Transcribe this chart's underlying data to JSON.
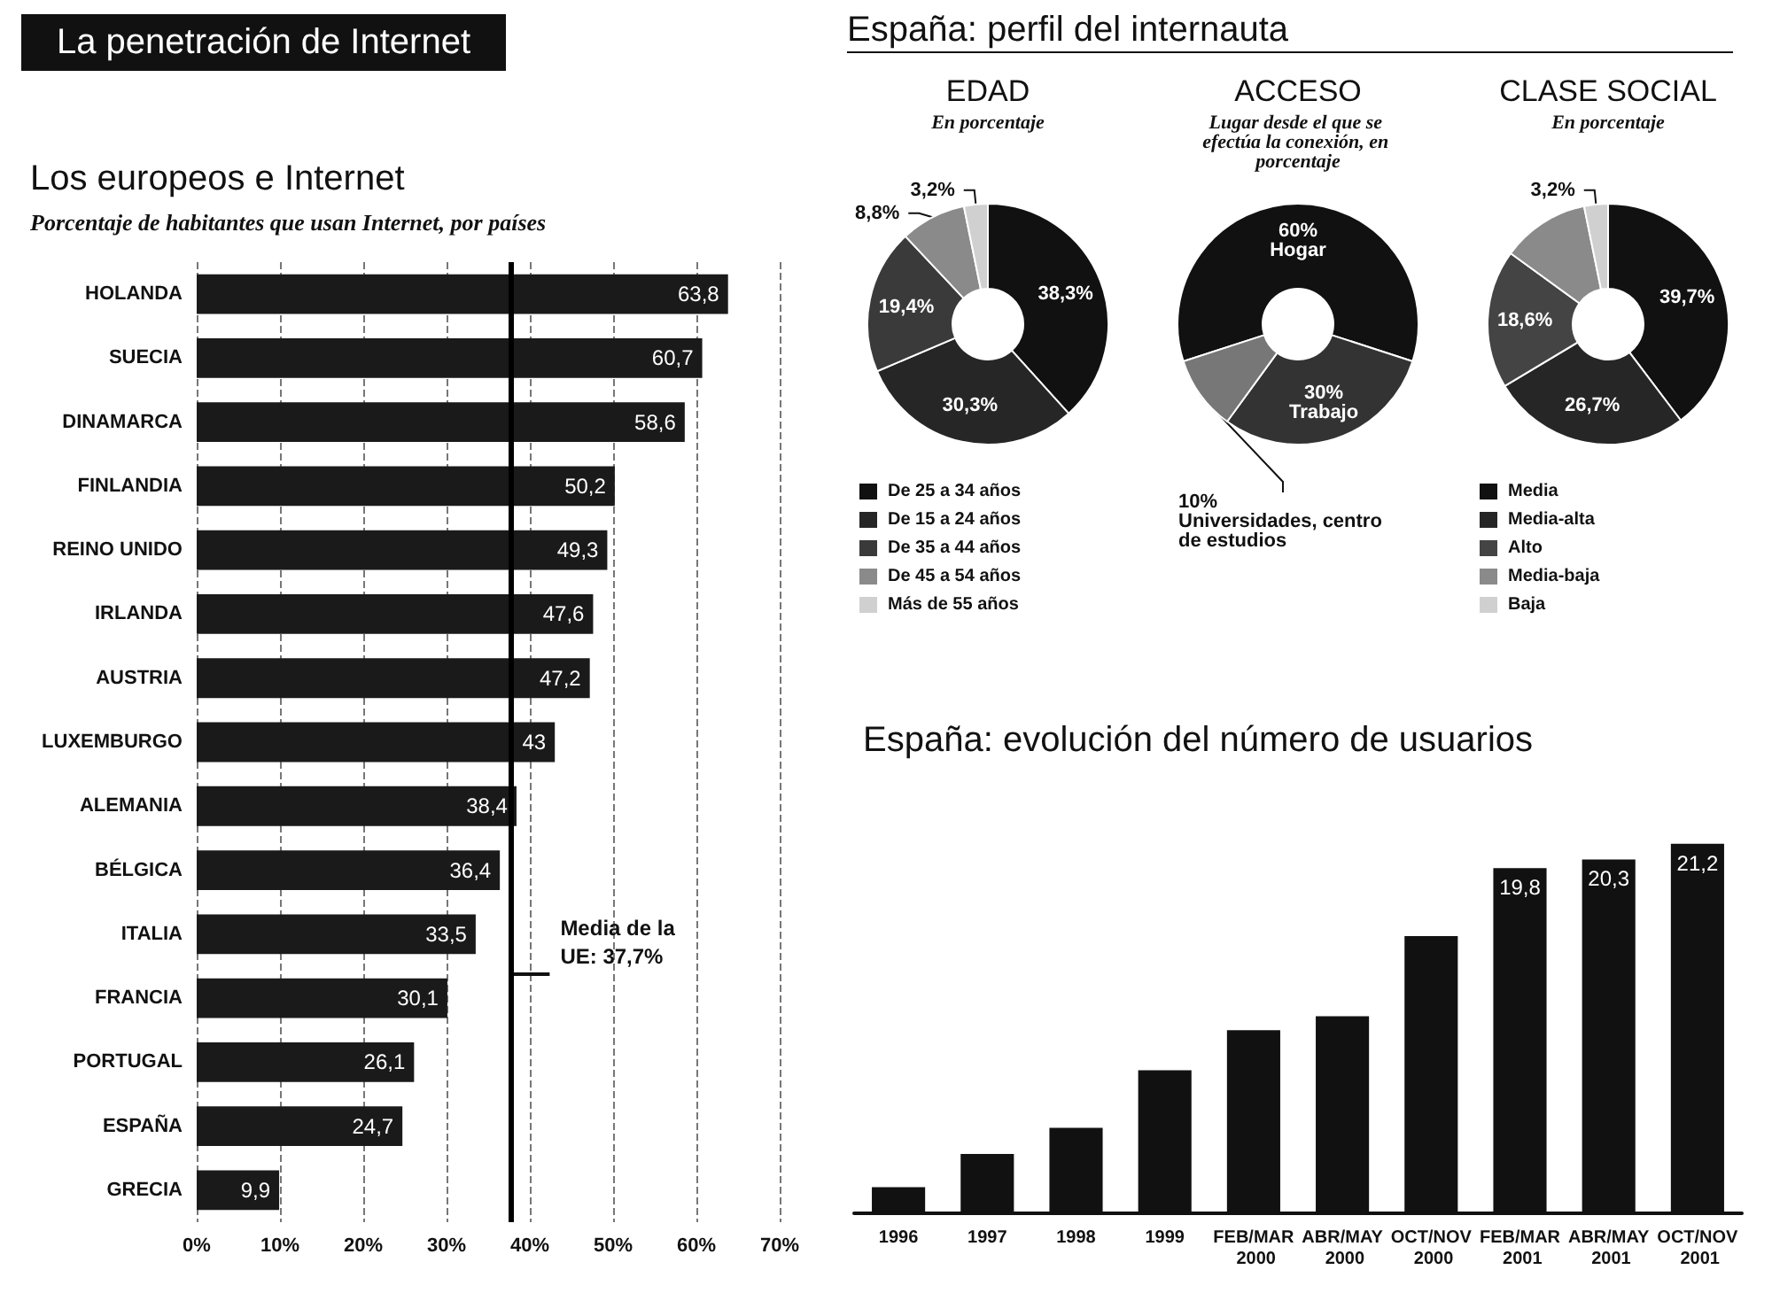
{
  "chart_data": [
    {
      "type": "bar",
      "orientation": "horizontal",
      "annotations": [
        "La penetración de Internet"
      ],
      "title": "Los europeos e Internet",
      "subtitle": "Porcentaje de habitantes que usan Internet, por países",
      "categories": [
        "HOLANDA",
        "SUECIA",
        "DINAMARCA",
        "FINLANDIA",
        "REINO UNIDO",
        "IRLANDA",
        "AUSTRIA",
        "LUXEMBURGO",
        "ALEMANIA",
        "BÉLGICA",
        "ITALIA",
        "FRANCIA",
        "PORTUGAL",
        "ESPAÑA",
        "GRECIA"
      ],
      "values": [
        63.8,
        60.7,
        58.6,
        50.2,
        49.3,
        47.6,
        47.2,
        43,
        38.4,
        36.4,
        33.5,
        30.1,
        26.1,
        24.7,
        9.9
      ],
      "value_labels": [
        "63,8",
        "60,7",
        "58,6",
        "50,2",
        "49,3",
        "47,6",
        "47,2",
        "43",
        "38,4",
        "36,4",
        "33,5",
        "30,1",
        "26,1",
        "24,7",
        "9,9"
      ],
      "color": "#1a1a1a",
      "xlim": [
        0,
        70
      ],
      "xticks": [
        {
          "value": 0,
          "label": "0%"
        },
        {
          "value": 10,
          "label": "10%"
        },
        {
          "value": 20,
          "label": "20%"
        },
        {
          "value": 30,
          "label": "30%"
        },
        {
          "value": 40,
          "label": "40%"
        },
        {
          "value": 50,
          "label": "50%"
        },
        {
          "value": 60,
          "label": "60%"
        },
        {
          "value": 70,
          "label": "70%"
        }
      ],
      "grid": "x",
      "ref_lines": [
        {
          "axis": "x",
          "value": 37.7,
          "label": "Media de la UE: 37,7%",
          "color": "#000000"
        }
      ]
    },
    {
      "type": "donut",
      "annotations": [
        "España: perfil del internauta"
      ],
      "title": "EDAD",
      "subtitle": "En porcentaje",
      "categories": [
        "De 25 a 34 años",
        "De 15 a 24 años",
        "De 35 a 44 años",
        "De 45 a 54 años",
        "Más de 55 años"
      ],
      "values": [
        38.3,
        30.3,
        19.4,
        8.8,
        3.2
      ],
      "value_labels": [
        "38,3%",
        "30,3%",
        "19,4%",
        "8,8%",
        "3,2%"
      ],
      "colors": [
        "#111111",
        "#262626",
        "#3a3a3a",
        "#8a8a8a",
        "#d0d0d0"
      ],
      "legend": "bottom"
    },
    {
      "type": "donut",
      "title": "ACCESO",
      "subtitle": "Lugar desde el que se efectúa la conexión, en porcentaje",
      "categories": [
        "Hogar",
        "Trabajo",
        "Universidades, centro de estudios"
      ],
      "values": [
        60,
        30,
        10
      ],
      "value_labels": [
        "60%",
        "30%",
        "10%"
      ],
      "colors": [
        "#111111",
        "#333333",
        "#777777"
      ]
    },
    {
      "type": "donut",
      "title": "CLASE SOCIAL",
      "subtitle": "En porcentaje",
      "categories": [
        "Media",
        "Media-alta",
        "Alto",
        "Media-baja",
        "Baja"
      ],
      "values": [
        39.7,
        26.7,
        18.6,
        11.8,
        3.2
      ],
      "value_labels": [
        "39,7%",
        "26,7%",
        "18,6%",
        null,
        "3,2%"
      ],
      "colors": [
        "#111111",
        "#262626",
        "#444444",
        "#8a8a8a",
        "#d0d0d0"
      ],
      "legend": "bottom"
    },
    {
      "type": "bar",
      "title": "España: evolución del número de usuarios",
      "categories": [
        "1996",
        "1997",
        "1998",
        "1999",
        "FEB/MAR 2000",
        "ABR/MAY 2000",
        "OCT/NOV 2000",
        "FEB/MAR 2001",
        "ABR/MAY 2001",
        "OCT/NOV 2001"
      ],
      "values": [
        1.5,
        3.4,
        4.9,
        8.2,
        10.5,
        11.3,
        15.9,
        19.8,
        20.3,
        21.2
      ],
      "value_labels": [
        null,
        null,
        null,
        null,
        null,
        null,
        null,
        "19,8",
        "20,3",
        "21,2"
      ],
      "color": "#111111"
    }
  ]
}
